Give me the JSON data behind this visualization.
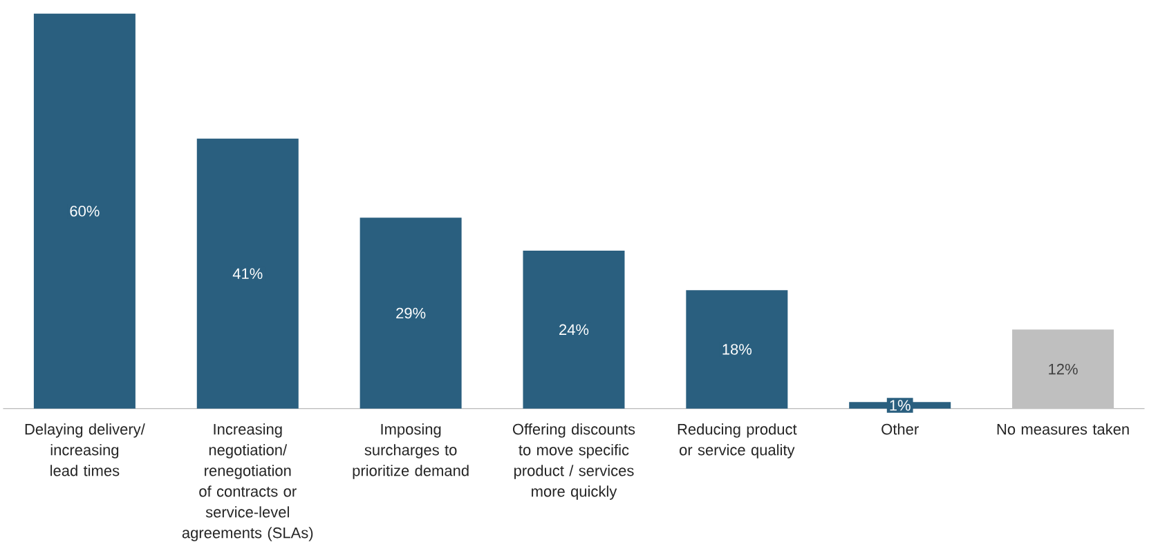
{
  "chart_data": {
    "type": "bar",
    "categories": [
      "Delaying delivery/ increasing lead times",
      "Increasing negotiation/ renegotiation of contracts or service-level agreements (SLAs)",
      "Imposing surcharges to prioritize demand",
      "Offering discounts to move specific product / services more quickly",
      "Reducing product or service quality",
      "Other",
      "No measures taken"
    ],
    "values": [
      60,
      41,
      29,
      24,
      18,
      1,
      12
    ],
    "colors": [
      "#2a5f7f",
      "#2a5f7f",
      "#2a5f7f",
      "#2a5f7f",
      "#2a5f7f",
      "#2a5f7f",
      "#bfbfbf"
    ],
    "value_labels": [
      "60%",
      "41%",
      "29%",
      "24%",
      "18%",
      "1%",
      "12%"
    ]
  }
}
